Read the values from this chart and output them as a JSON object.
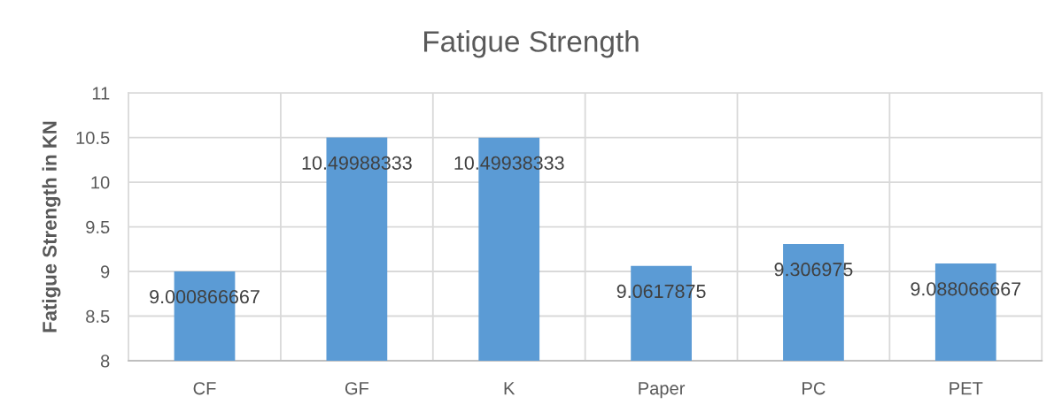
{
  "chart_data": {
    "type": "bar",
    "title": "Fatigue Strength",
    "ylabel": "Fatigue Strength in KN",
    "categories": [
      "CF",
      "GF",
      "K",
      "Paper",
      "PC",
      "PET"
    ],
    "values": [
      9.000866667,
      10.49988333,
      10.49938333,
      9.0617875,
      9.306975,
      9.088066667
    ],
    "color": "#5b9bd5",
    "ylim": [
      8,
      11
    ],
    "yticks": [
      8,
      8.5,
      9,
      9.5,
      10,
      10.5,
      11
    ],
    "grid": true,
    "data_labels": true,
    "legend": false
  }
}
